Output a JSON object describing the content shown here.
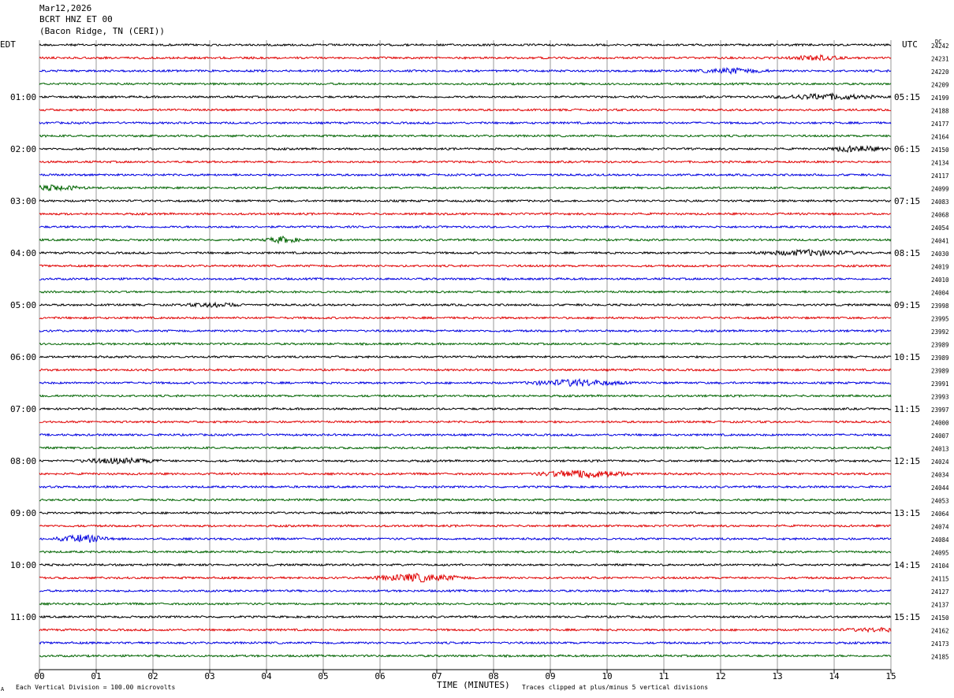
{
  "header": {
    "date": "Mar12,2026",
    "station": "BCRT HNZ ET 00",
    "location": "(Bacon Ridge, TN (CERI))"
  },
  "left_tz": "EDT",
  "right_tz": "UTC",
  "dc_label": "DC",
  "footer": {
    "scale_note": "Each Vertical Division =  100.00 microvolts",
    "clip_note": "Traces clipped at plus/minus 5 vertical divisions",
    "corner_mark": "A"
  },
  "colors": {
    "trace_cycle": [
      "#000000",
      "#e00000",
      "#0000e0",
      "#006400"
    ],
    "grid": "#9a9a9a"
  },
  "chart_data": {
    "type": "line",
    "description_type": "helicorder",
    "xlabel": "TIME (MINUTES)",
    "x_ticks": [
      "00",
      "01",
      "02",
      "03",
      "04",
      "05",
      "06",
      "07",
      "08",
      "09",
      "10",
      "11",
      "12",
      "13",
      "14",
      "15"
    ],
    "xlim": [
      0,
      15
    ],
    "rows_per_hour": 4,
    "left_hour_labels": [
      "01:00",
      "02:00",
      "03:00",
      "04:00",
      "05:00",
      "06:00",
      "07:00",
      "08:00",
      "09:00",
      "10:00",
      "11:00"
    ],
    "right_hour_labels": [
      "05:15",
      "06:15",
      "07:15",
      "08:15",
      "09:15",
      "10:15",
      "11:15",
      "12:15",
      "13:15",
      "14:15",
      "15:15"
    ],
    "dc_offsets": [
      24242,
      24231,
      24220,
      24209,
      24199,
      24188,
      24177,
      24164,
      24150,
      24134,
      24117,
      24099,
      24083,
      24068,
      24054,
      24041,
      24030,
      24019,
      24010,
      24004,
      23998,
      23995,
      23992,
      23989,
      23989,
      23989,
      23991,
      23993,
      23997,
      24000,
      24007,
      24013,
      24024,
      24034,
      24044,
      24053,
      24064,
      24074,
      24084,
      24095,
      24104,
      24115,
      24127,
      24137,
      24150,
      24162,
      24173,
      24185
    ]
  }
}
